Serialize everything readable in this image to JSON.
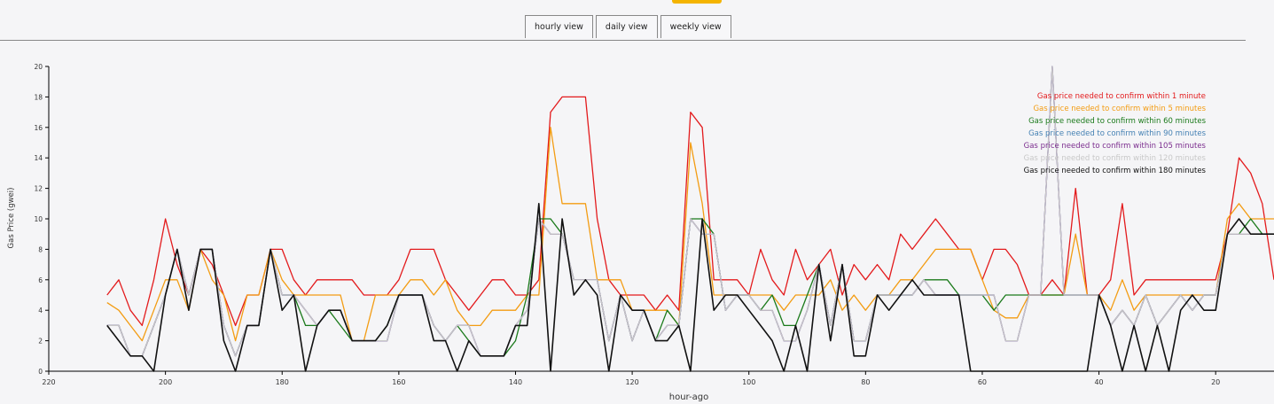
{
  "tabs": {
    "hourly": "hourly view",
    "daily": "daily view",
    "weekly": "weekly view"
  },
  "chart_data": {
    "type": "line",
    "xlabel": "hour-ago",
    "ylabel": "Gas Price (gwei)",
    "xlim": [
      220,
      10
    ],
    "ylim": [
      0,
      20
    ],
    "x_ticks": [
      220,
      200,
      180,
      160,
      140,
      120,
      100,
      80,
      60,
      40,
      20
    ],
    "y_ticks": [
      0,
      2,
      4,
      6,
      8,
      10,
      12,
      14,
      16,
      18,
      20
    ],
    "grid": false,
    "legend_position": "top-right",
    "x": [
      210,
      208,
      206,
      204,
      202,
      200,
      198,
      196,
      194,
      192,
      190,
      188,
      186,
      184,
      182,
      180,
      178,
      176,
      174,
      172,
      170,
      168,
      166,
      164,
      162,
      160,
      158,
      156,
      154,
      152,
      150,
      148,
      146,
      144,
      142,
      140,
      138,
      136,
      134,
      132,
      130,
      128,
      126,
      124,
      122,
      120,
      118,
      116,
      114,
      112,
      110,
      108,
      106,
      104,
      102,
      100,
      98,
      96,
      94,
      92,
      90,
      88,
      86,
      84,
      82,
      80,
      78,
      76,
      74,
      72,
      70,
      68,
      66,
      64,
      62,
      60,
      58,
      56,
      54,
      52,
      50,
      48,
      46,
      44,
      42,
      40,
      38,
      36,
      34,
      32,
      30,
      28,
      26,
      24,
      22,
      20,
      18,
      16,
      14,
      12,
      10
    ],
    "series": [
      {
        "name": "Gas price needed to confirm within 1 minute",
        "color": "#e31a1c",
        "values": [
          5,
          6,
          4,
          3,
          6,
          10,
          7,
          5,
          8,
          7,
          5,
          3,
          5,
          5,
          8,
          8,
          6,
          5,
          6,
          6,
          6,
          6,
          5,
          5,
          5,
          6,
          8,
          8,
          8,
          6,
          5,
          4,
          5,
          6,
          6,
          5,
          5,
          6,
          17,
          18,
          18,
          18,
          10,
          6,
          5,
          5,
          5,
          4,
          5,
          4,
          17,
          16,
          6,
          6,
          6,
          5,
          8,
          6,
          5,
          8,
          6,
          7,
          8,
          5,
          7,
          6,
          7,
          6,
          9,
          8,
          9,
          10,
          9,
          8,
          8,
          6,
          8,
          8,
          7,
          5,
          5,
          6,
          5,
          12,
          5,
          5,
          6,
          11,
          5,
          6,
          6,
          6,
          6,
          6,
          6,
          6,
          9,
          14,
          13,
          11,
          6
        ]
      },
      {
        "name": "Gas price needed to confirm within 5 minutes",
        "color": "#f39c12",
        "values": [
          4.5,
          4,
          3,
          2,
          4,
          6,
          6,
          4,
          8,
          6,
          5,
          2,
          5,
          5,
          8,
          6,
          5,
          5,
          5,
          5,
          5,
          2,
          2,
          5,
          5,
          5,
          6,
          6,
          5,
          6,
          4,
          3,
          3,
          4,
          4,
          4,
          5,
          5,
          16,
          11,
          11,
          11,
          6,
          6,
          6,
          4,
          4,
          4,
          4,
          3,
          15,
          11,
          5,
          5,
          5,
          5,
          5,
          5,
          4,
          5,
          5,
          5,
          6,
          4,
          5,
          4,
          5,
          5,
          6,
          6,
          7,
          8,
          8,
          8,
          8,
          6,
          4,
          3.5,
          3.5,
          5,
          5,
          5,
          5,
          9,
          5,
          5,
          4,
          6,
          4,
          5,
          5,
          5,
          5,
          5,
          5,
          5,
          10,
          11,
          10,
          10,
          10
        ]
      },
      {
        "name": "Gas price needed to confirm within 60 minutes",
        "color": "#1b7a1b",
        "values": [
          3,
          3,
          1,
          1,
          3,
          5,
          8,
          5,
          8,
          8,
          3,
          1,
          3,
          3,
          8,
          5,
          5,
          3,
          3,
          4,
          3,
          2,
          2,
          2,
          3,
          5,
          5,
          5,
          3,
          2,
          3,
          2,
          1,
          1,
          1,
          2,
          5,
          10,
          10,
          9,
          6,
          6,
          6,
          2,
          5,
          2,
          4,
          2,
          4,
          3,
          10,
          10,
          9,
          4,
          5,
          5,
          4,
          5,
          3,
          3,
          5,
          7,
          3,
          7,
          2,
          2,
          5,
          5,
          5,
          5,
          6,
          6,
          6,
          5,
          5,
          5,
          4,
          5,
          5,
          5,
          5,
          5,
          5,
          5,
          5,
          5,
          3,
          4,
          3,
          5,
          3,
          4,
          5,
          4,
          5,
          5,
          9,
          9,
          10,
          9,
          9
        ]
      },
      {
        "name": "Gas price needed to confirm within 90 minutes",
        "color": "#4682b4",
        "values": [
          3,
          3,
          1,
          1,
          3,
          5,
          8,
          5,
          8,
          8,
          3,
          1,
          3,
          3,
          8,
          5,
          5,
          4,
          3,
          4,
          4,
          2,
          2,
          2,
          2,
          5,
          5,
          5,
          3,
          2,
          3,
          3,
          1,
          1,
          1,
          3,
          4,
          10,
          9,
          9,
          6,
          6,
          6,
          2,
          5,
          2,
          4,
          2,
          3,
          3,
          10,
          9,
          9,
          4,
          5,
          5,
          4,
          4,
          2,
          2,
          4,
          7,
          3,
          7,
          2,
          2,
          5,
          5,
          5,
          5,
          6,
          5,
          5,
          5,
          5,
          5,
          5,
          2,
          2,
          5,
          5,
          20,
          5,
          5,
          5,
          5,
          3,
          4,
          3,
          5,
          3,
          4,
          5,
          4,
          5,
          5,
          9,
          9,
          9,
          9,
          9
        ]
      },
      {
        "name": "Gas price needed to confirm within 105 minutes",
        "color": "#7b2d8e",
        "values": [
          3,
          3,
          1,
          1,
          3,
          5,
          8,
          5,
          8,
          8,
          3,
          1,
          3,
          3,
          8,
          5,
          5,
          4,
          3,
          4,
          4,
          2,
          2,
          2,
          2,
          5,
          5,
          5,
          3,
          2,
          3,
          3,
          1,
          1,
          1,
          3,
          4,
          10,
          9,
          9,
          6,
          6,
          6,
          2,
          5,
          2,
          4,
          2,
          3,
          3,
          10,
          9,
          9,
          4,
          5,
          5,
          4,
          4,
          2,
          2,
          4,
          7,
          3,
          7,
          2,
          2,
          5,
          5,
          5,
          5,
          6,
          5,
          5,
          5,
          5,
          5,
          5,
          2,
          2,
          5,
          5,
          20,
          5,
          5,
          5,
          5,
          3,
          4,
          3,
          5,
          3,
          4,
          5,
          4,
          5,
          5,
          9,
          9,
          9,
          9,
          9
        ]
      },
      {
        "name": "Gas price needed to confirm within 120 minutes",
        "color": "#c8c8c8",
        "values": [
          3,
          3,
          1,
          1,
          3,
          5,
          8,
          5,
          8,
          8,
          3,
          1,
          3,
          3,
          8,
          5,
          5,
          4,
          3,
          4,
          4,
          2,
          2,
          2,
          2,
          5,
          5,
          5,
          3,
          2,
          3,
          3,
          1,
          1,
          1,
          3,
          4,
          10,
          9,
          9,
          6,
          6,
          6,
          2,
          5,
          2,
          4,
          2,
          3,
          3,
          10,
          9,
          9,
          4,
          5,
          5,
          4,
          4,
          2,
          2,
          4,
          7,
          3,
          7,
          2,
          2,
          5,
          5,
          5,
          5,
          6,
          5,
          5,
          5,
          5,
          5,
          5,
          2,
          2,
          5,
          5,
          20,
          5,
          5,
          5,
          5,
          3,
          4,
          3,
          5,
          3,
          4,
          5,
          4,
          5,
          5,
          9,
          9,
          9,
          9,
          9
        ]
      },
      {
        "name": "Gas price needed to confirm within 180 minutes",
        "color": "#111111",
        "values": [
          3,
          2,
          1,
          1,
          0,
          5,
          8,
          4,
          8,
          8,
          2,
          0,
          3,
          3,
          8,
          4,
          5,
          0,
          3,
          4,
          4,
          2,
          2,
          2,
          3,
          5,
          5,
          5,
          2,
          2,
          0,
          2,
          1,
          1,
          1,
          3,
          3,
          11,
          0,
          10,
          5,
          6,
          5,
          0,
          5,
          4,
          4,
          2,
          2,
          3,
          0,
          10,
          4,
          5,
          5,
          4,
          3,
          2,
          0,
          3,
          0,
          7,
          2,
          7,
          1,
          1,
          5,
          4,
          5,
          6,
          5,
          5,
          5,
          5,
          0,
          0,
          0,
          0,
          0,
          0,
          0,
          0,
          0,
          0,
          0,
          5,
          3,
          0,
          3,
          0,
          3,
          0,
          4,
          5,
          4,
          4,
          9,
          10,
          9,
          9,
          9
        ]
      }
    ]
  }
}
